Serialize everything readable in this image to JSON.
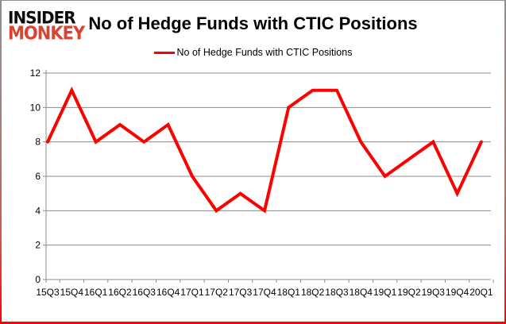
{
  "logo": {
    "line1": "INSIDER",
    "line2": "MONKEY"
  },
  "title": "No of Hedge Funds with CTIC Positions",
  "legend": {
    "label": "No of Hedge Funds with CTIC Positions"
  },
  "chart_data": {
    "type": "line",
    "title": "No of Hedge Funds with CTIC Positions",
    "categories": [
      "15Q3",
      "15Q4",
      "16Q1",
      "16Q2",
      "16Q3",
      "16Q4",
      "17Q1",
      "17Q2",
      "17Q3",
      "17Q4",
      "18Q1",
      "18Q2",
      "18Q3",
      "18Q4",
      "19Q1",
      "19Q2",
      "19Q3",
      "19Q4",
      "20Q1"
    ],
    "series": [
      {
        "name": "No of Hedge Funds with CTIC Positions",
        "color": "#ff0000",
        "values": [
          8,
          11,
          8,
          9,
          8,
          9,
          6,
          4,
          5,
          4,
          10,
          11,
          11,
          8,
          6,
          7,
          8,
          5,
          8
        ]
      }
    ],
    "xlabel": "",
    "ylabel": "",
    "ylim": [
      0,
      12
    ],
    "yticks": [
      0,
      2,
      4,
      6,
      8,
      10,
      12
    ],
    "grid": true,
    "legend_position": "top-center"
  },
  "colors": {
    "line": "#ff0000",
    "grid": "#8c8c8c",
    "axis_text": "#000000",
    "logo_black": "#0d0d0d",
    "logo_red": "#d9432f",
    "border_top": "#8e8e8e",
    "border_bottom": "#ff0000"
  }
}
